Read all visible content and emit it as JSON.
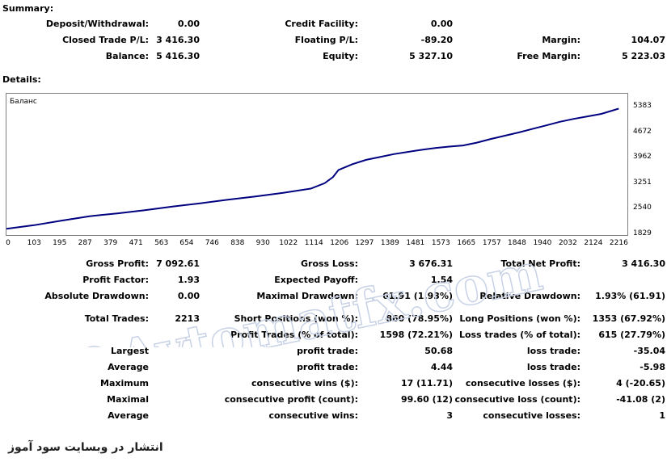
{
  "sections": {
    "summary": "Summary:",
    "details": "Details:"
  },
  "summary": {
    "deposit_withdrawal": {
      "label": "Deposit/Withdrawal:",
      "value": "0.00"
    },
    "credit_facility": {
      "label": "Credit Facility:",
      "value": "0.00"
    },
    "closed_trade_pl": {
      "label": "Closed Trade P/L:",
      "value": "3 416.30"
    },
    "floating_pl": {
      "label": "Floating P/L:",
      "value": "-89.20"
    },
    "margin": {
      "label": "Margin:",
      "value": "104.07"
    },
    "balance": {
      "label": "Balance:",
      "value": "5 416.30"
    },
    "equity": {
      "label": "Equity:",
      "value": "5 327.10"
    },
    "free_margin": {
      "label": "Free Margin:",
      "value": "5 223.03"
    }
  },
  "chart_data": {
    "type": "line",
    "title": "Баланс",
    "x_ticks": [
      "0",
      "103",
      "195",
      "287",
      "379",
      "471",
      "563",
      "654",
      "746",
      "838",
      "930",
      "1022",
      "1114",
      "1206",
      "1297",
      "1389",
      "1481",
      "1573",
      "1665",
      "1757",
      "1848",
      "1940",
      "2032",
      "2124",
      "2216"
    ],
    "y_ticks": [
      "5383",
      "4672",
      "3962",
      "3251",
      "2540",
      "1829"
    ],
    "xlim": [
      0,
      2250
    ],
    "ylim": [
      1829,
      5383
    ],
    "line_color": "#000080",
    "series": [
      {
        "x": [
          0,
          100,
          200,
          300,
          400,
          500,
          600,
          700,
          800,
          900,
          1000,
          1100,
          1150,
          1180,
          1200,
          1250,
          1300,
          1350,
          1400,
          1450,
          1500,
          1550,
          1600,
          1650,
          1700,
          1750,
          1800,
          1850,
          1900,
          1950,
          2000,
          2050,
          2100,
          2150,
          2213
        ],
        "values": [
          1980,
          2080,
          2210,
          2330,
          2410,
          2500,
          2600,
          2690,
          2790,
          2880,
          2980,
          3100,
          3250,
          3420,
          3620,
          3780,
          3900,
          3980,
          4060,
          4120,
          4180,
          4230,
          4270,
          4300,
          4380,
          4480,
          4570,
          4660,
          4760,
          4860,
          4960,
          5040,
          5110,
          5180,
          5327
        ]
      }
    ]
  },
  "stats": {
    "gross_profit": {
      "label": "Gross Profit:",
      "value": "7 092.61"
    },
    "gross_loss": {
      "label": "Gross Loss:",
      "value": "3 676.31"
    },
    "total_net_profit": {
      "label": "Total Net Profit:",
      "value": "3 416.30"
    },
    "profit_factor": {
      "label": "Profit Factor:",
      "value": "1.93"
    },
    "expected_payoff": {
      "label": "Expected Payoff:",
      "value": "1.54"
    },
    "absolute_drawdown": {
      "label": "Absolute Drawdown:",
      "value": "0.00"
    },
    "maximal_drawdown": {
      "label": "Maximal Drawdown:",
      "value": "61.91 (1.93%)"
    },
    "relative_drawdown": {
      "label": "Relative Drawdown:",
      "value": "1.93% (61.91)"
    },
    "total_trades": {
      "label": "Total Trades:",
      "value": "2213"
    },
    "short_positions": {
      "label": "Short Positions (won %):",
      "value": "860 (78.95%)"
    },
    "long_positions": {
      "label": "Long Positions (won %):",
      "value": "1353 (67.92%)"
    },
    "profit_trades": {
      "label": "Profit Trades (% of total):",
      "value": "1598 (72.21%)"
    },
    "loss_trades": {
      "label": "Loss trades (% of total):",
      "value": "615 (27.79%)"
    },
    "largest": {
      "label": "Largest",
      "profit_label": "profit trade:",
      "profit_value": "50.68",
      "loss_label": "loss trade:",
      "loss_value": "-35.04"
    },
    "average": {
      "label": "Average",
      "profit_label": "profit trade:",
      "profit_value": "4.44",
      "loss_label": "loss trade:",
      "loss_value": "-5.98"
    },
    "maximum": {
      "label": "Maximum",
      "profit_label": "consecutive wins ($):",
      "profit_value": "17 (11.71)",
      "loss_label": "consecutive losses ($):",
      "loss_value": "4 (-20.65)"
    },
    "maximal": {
      "label": "Maximal",
      "profit_label": "consecutive profit (count):",
      "profit_value": "99.60 (12)",
      "loss_label": "consecutive loss (count):",
      "loss_value": "-41.08 (2)"
    },
    "average2": {
      "label": "Average",
      "profit_label": "consecutive wins:",
      "profit_value": "3",
      "loss_label": "consecutive losses:",
      "loss_value": "1"
    }
  },
  "watermark": "©Avtomatfx.com",
  "footer": "انتشار در وبسایت سود آموز",
  "colors": {
    "watermark": "#c8d2e6"
  }
}
